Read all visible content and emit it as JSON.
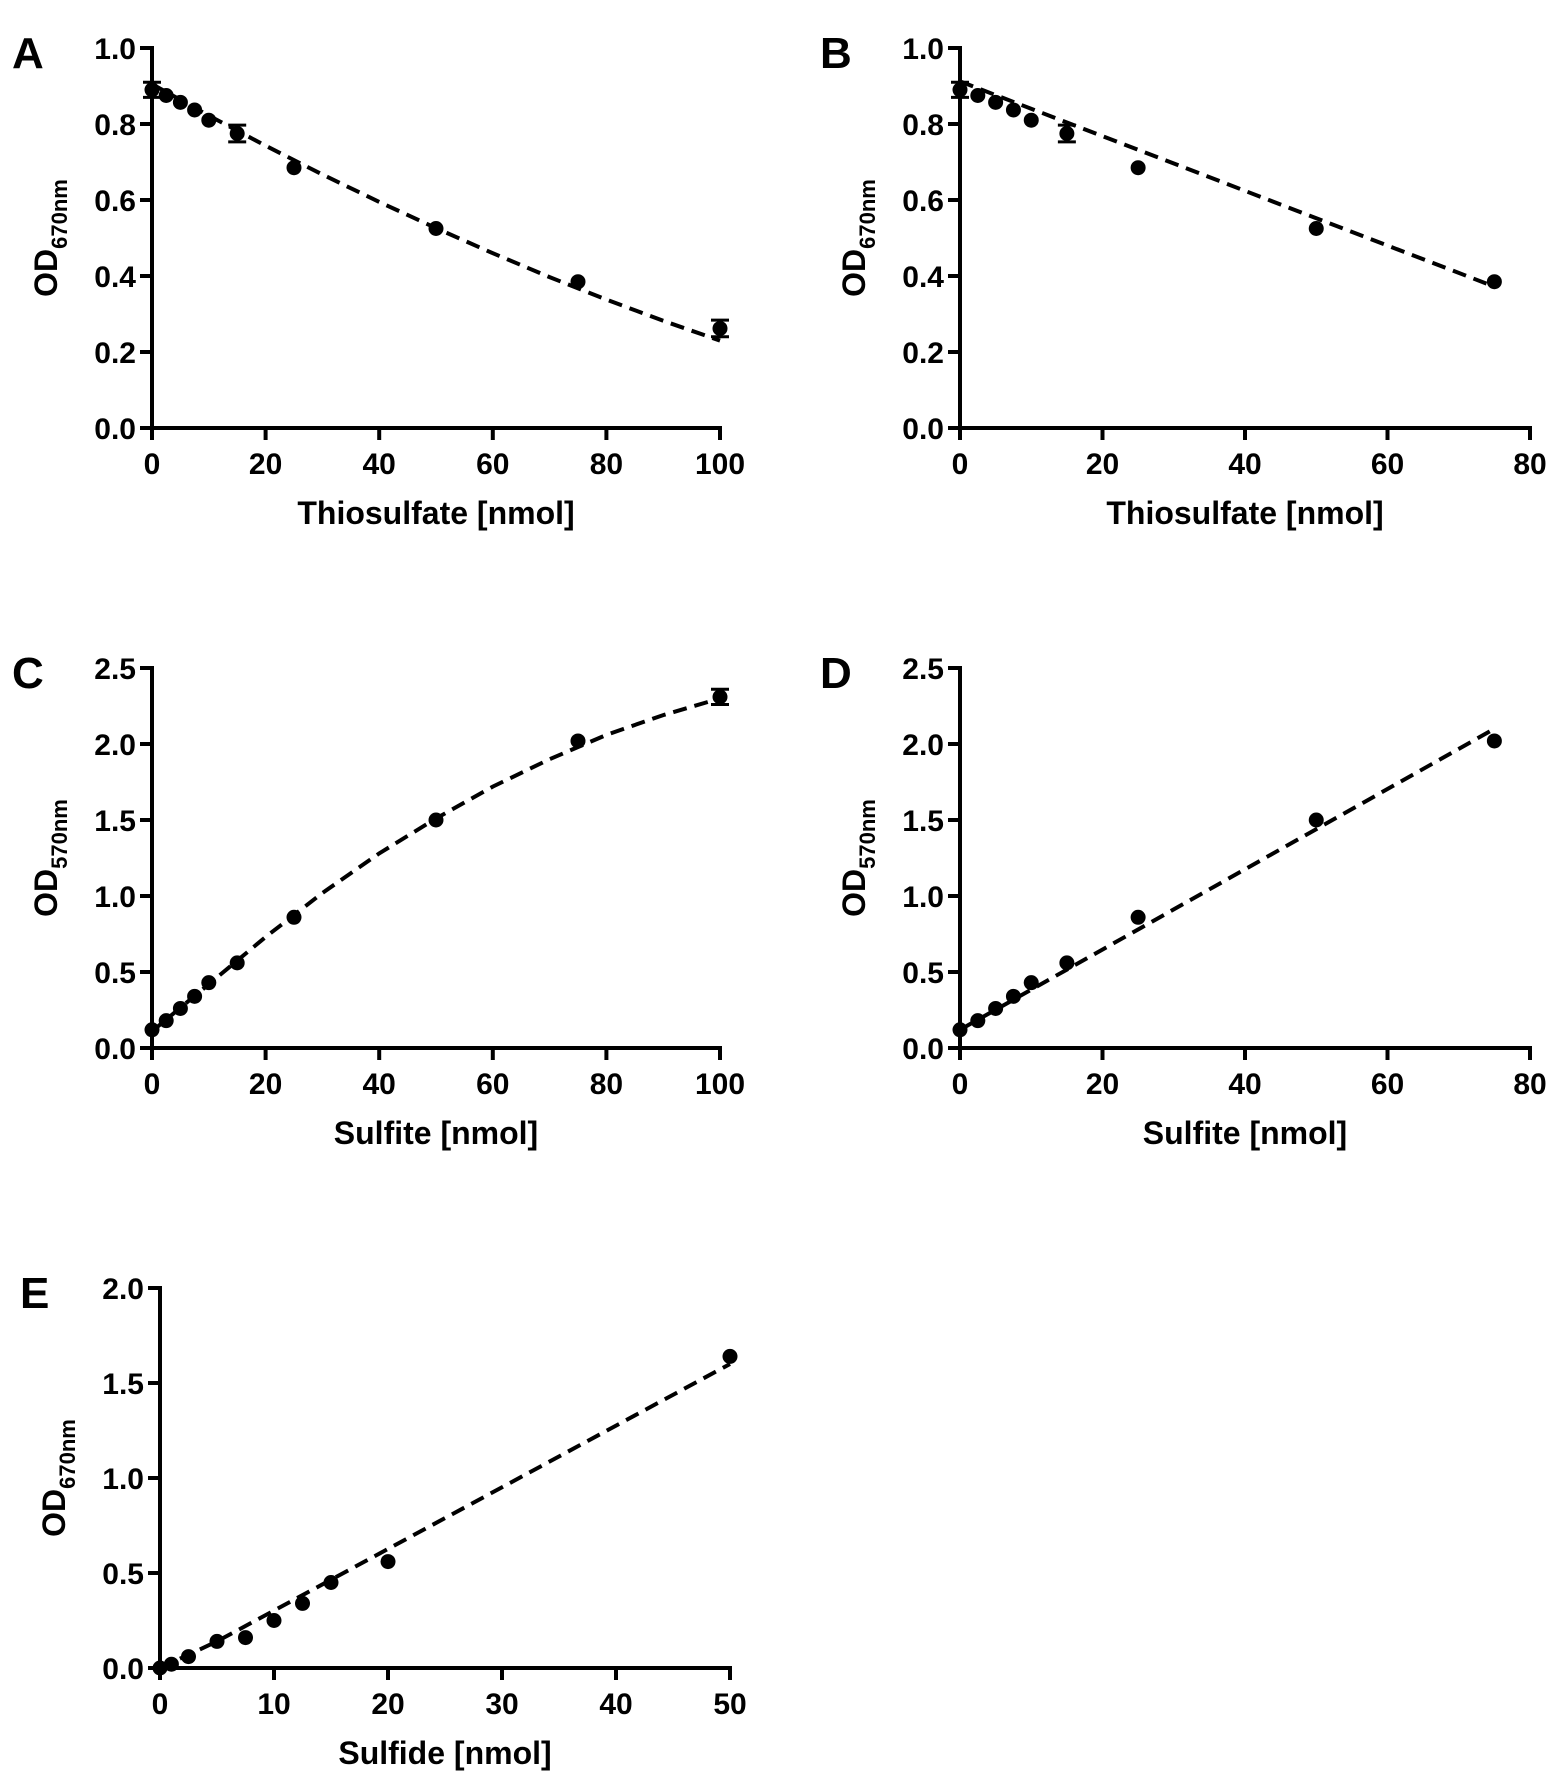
{
  "chart_data": [
    {
      "panel": "A",
      "type": "scatter",
      "xlabel": "Thiosulfate [nmol]",
      "ylabel": "OD",
      "ylabel_subscript": "670nm",
      "xlim": [
        0,
        100
      ],
      "ylim": [
        0,
        1.0
      ],
      "xticks": [
        0,
        20,
        40,
        60,
        80,
        100
      ],
      "yticks": [
        0.0,
        0.2,
        0.4,
        0.6,
        0.8,
        1.0
      ],
      "x": [
        0,
        2.5,
        5,
        7.5,
        10,
        15,
        25,
        50,
        75,
        100
      ],
      "y": [
        0.89,
        0.875,
        0.857,
        0.837,
        0.81,
        0.775,
        0.685,
        0.525,
        0.385,
        0.262
      ],
      "yerr": [
        0.02,
        0,
        0,
        0,
        0,
        0.022,
        0,
        0,
        0,
        0.022
      ],
      "fit": {
        "style": "dashed",
        "x": [
          0,
          10,
          20,
          30,
          40,
          50,
          60,
          70,
          80,
          90,
          100
        ],
        "y": [
          0.905,
          0.822,
          0.743,
          0.667,
          0.595,
          0.526,
          0.46,
          0.397,
          0.338,
          0.282,
          0.23
        ]
      }
    },
    {
      "panel": "B",
      "type": "scatter",
      "xlabel": "Thiosulfate [nmol]",
      "ylabel": "OD",
      "ylabel_subscript": "670nm",
      "xlim": [
        0,
        80
      ],
      "ylim": [
        0,
        1.0
      ],
      "xticks": [
        0,
        20,
        40,
        60,
        80
      ],
      "yticks": [
        0.0,
        0.2,
        0.4,
        0.6,
        0.8,
        1.0
      ],
      "x": [
        0,
        2.5,
        5,
        7.5,
        10,
        15,
        25,
        50,
        75
      ],
      "y": [
        0.89,
        0.875,
        0.857,
        0.837,
        0.81,
        0.775,
        0.685,
        0.525,
        0.385
      ],
      "yerr": [
        0.02,
        0,
        0,
        0,
        0,
        0.022,
        0,
        0,
        0
      ],
      "fit": {
        "style": "dashed",
        "x": [
          0,
          75
        ],
        "y": [
          0.912,
          0.372
        ]
      }
    },
    {
      "panel": "C",
      "type": "scatter",
      "xlabel": "Sulfite [nmol]",
      "ylabel": "OD",
      "ylabel_subscript": "570nm",
      "xlim": [
        0,
        100
      ],
      "ylim": [
        0,
        2.5
      ],
      "xticks": [
        0,
        20,
        40,
        60,
        80,
        100
      ],
      "yticks": [
        0.0,
        0.5,
        1.0,
        1.5,
        2.0,
        2.5
      ],
      "x": [
        0,
        2.5,
        5,
        7.5,
        10,
        15,
        25,
        50,
        75,
        100
      ],
      "y": [
        0.12,
        0.18,
        0.26,
        0.34,
        0.43,
        0.56,
        0.86,
        1.5,
        2.02,
        2.31
      ],
      "yerr": [
        0,
        0,
        0,
        0,
        0,
        0,
        0,
        0,
        0,
        0.05
      ],
      "fit": {
        "style": "dashed",
        "x": [
          0,
          10,
          20,
          30,
          40,
          50,
          60,
          70,
          80,
          90,
          100
        ],
        "y": [
          0.11,
          0.42,
          0.73,
          1.02,
          1.28,
          1.51,
          1.72,
          1.9,
          2.06,
          2.19,
          2.3
        ]
      }
    },
    {
      "panel": "D",
      "type": "scatter",
      "xlabel": "Sulfite [nmol]",
      "ylabel": "OD",
      "ylabel_subscript": "570nm",
      "xlim": [
        0,
        80
      ],
      "ylim": [
        0,
        2.5
      ],
      "xticks": [
        0,
        20,
        40,
        60,
        80
      ],
      "yticks": [
        0.0,
        0.5,
        1.0,
        1.5,
        2.0,
        2.5
      ],
      "x": [
        0,
        2.5,
        5,
        7.5,
        10,
        15,
        25,
        50,
        75
      ],
      "y": [
        0.12,
        0.18,
        0.26,
        0.34,
        0.43,
        0.56,
        0.86,
        1.5,
        2.02
      ],
      "yerr": [
        0,
        0,
        0,
        0,
        0,
        0,
        0,
        0,
        0
      ],
      "fit": {
        "style": "dashed",
        "x": [
          0,
          75
        ],
        "y": [
          0.12,
          2.1
        ]
      }
    },
    {
      "panel": "E",
      "type": "scatter",
      "xlabel": "Sulfide [nmol]",
      "ylabel": "OD",
      "ylabel_subscript": "670nm",
      "xlim": [
        0,
        50
      ],
      "ylim": [
        0,
        2.0
      ],
      "xticks": [
        0,
        10,
        20,
        30,
        40,
        50
      ],
      "yticks": [
        0.0,
        0.5,
        1.0,
        1.5,
        2.0
      ],
      "x": [
        0,
        1,
        2.5,
        5,
        7.5,
        10,
        12.5,
        15,
        20,
        50
      ],
      "y": [
        0.0,
        0.02,
        0.06,
        0.14,
        0.16,
        0.25,
        0.34,
        0.45,
        0.56,
        1.64
      ],
      "yerr": [
        0,
        0,
        0,
        0,
        0,
        0,
        0,
        0,
        0,
        0
      ],
      "fit": {
        "style": "dashed",
        "x": [
          0,
          5,
          50
        ],
        "y": [
          0.0,
          0.14,
          1.6
        ]
      }
    }
  ]
}
